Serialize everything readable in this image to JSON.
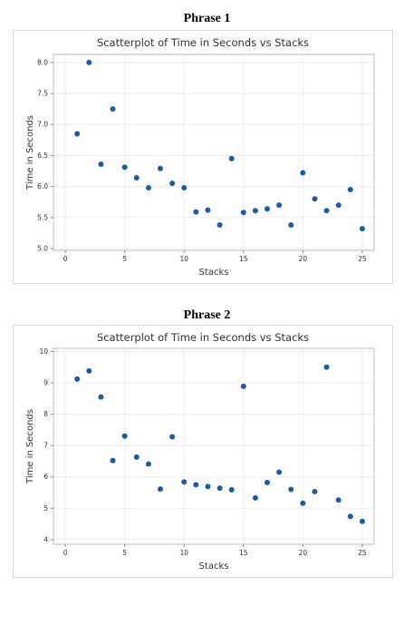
{
  "colors": {
    "point": "#1f5aa0",
    "grid": "#ececec",
    "frame": "#bdbdbd"
  },
  "chart_data": [
    {
      "type": "scatter",
      "heading": "Phrase 1",
      "title": "Scatterplot of Time in Seconds vs Stacks",
      "xlabel": "Stacks",
      "ylabel": "Time in Seconds",
      "xlim": [
        -1,
        26
      ],
      "ylim": [
        4.97,
        8.13
      ],
      "xticks": [
        0,
        5,
        10,
        15,
        20,
        25
      ],
      "xtick_labels": [
        "0",
        "5",
        "10",
        "15",
        "20",
        "25"
      ],
      "yticks": [
        5.0,
        5.5,
        6.0,
        6.5,
        7.0,
        7.5,
        8.0
      ],
      "ytick_labels": [
        "5.0",
        "5.5",
        "6.0",
        "6.5",
        "7.0",
        "7.5",
        "8.0"
      ],
      "grid": true,
      "x": [
        1,
        2,
        3,
        4,
        5,
        6,
        7,
        8,
        9,
        10,
        11,
        12,
        13,
        14,
        15,
        16,
        17,
        18,
        19,
        20,
        21,
        22,
        23,
        24,
        25
      ],
      "y": [
        6.85,
        8.0,
        6.36,
        7.25,
        6.31,
        6.14,
        5.98,
        6.29,
        6.05,
        5.98,
        5.59,
        5.62,
        5.38,
        6.45,
        5.58,
        5.61,
        5.64,
        5.7,
        5.38,
        6.22,
        5.8,
        5.61,
        5.7,
        5.95,
        5.32
      ]
    },
    {
      "type": "scatter",
      "heading": "Phrase 2",
      "title": "Scatterplot of Time in Seconds vs Stacks",
      "xlabel": "Stacks",
      "ylabel": "Time in Seconds",
      "xlim": [
        -1,
        26
      ],
      "ylim": [
        3.85,
        10.1
      ],
      "xticks": [
        0,
        5,
        10,
        15,
        20,
        25
      ],
      "xtick_labels": [
        "0",
        "5",
        "10",
        "15",
        "20",
        "25"
      ],
      "yticks": [
        4,
        5,
        6,
        7,
        8,
        9,
        10
      ],
      "ytick_labels": [
        "4",
        "5",
        "6",
        "7",
        "8",
        "9",
        "10"
      ],
      "grid": true,
      "x": [
        1,
        2,
        3,
        4,
        5,
        6,
        7,
        8,
        9,
        10,
        11,
        12,
        13,
        14,
        15,
        16,
        17,
        18,
        19,
        20,
        21,
        22,
        23,
        24,
        25
      ],
      "y": [
        9.12,
        9.38,
        8.55,
        6.52,
        7.3,
        6.63,
        6.41,
        5.61,
        7.28,
        5.84,
        5.75,
        5.69,
        5.64,
        5.59,
        8.89,
        5.33,
        5.82,
        6.15,
        5.6,
        5.16,
        5.53,
        9.5,
        5.26,
        4.74,
        4.58
      ]
    }
  ]
}
